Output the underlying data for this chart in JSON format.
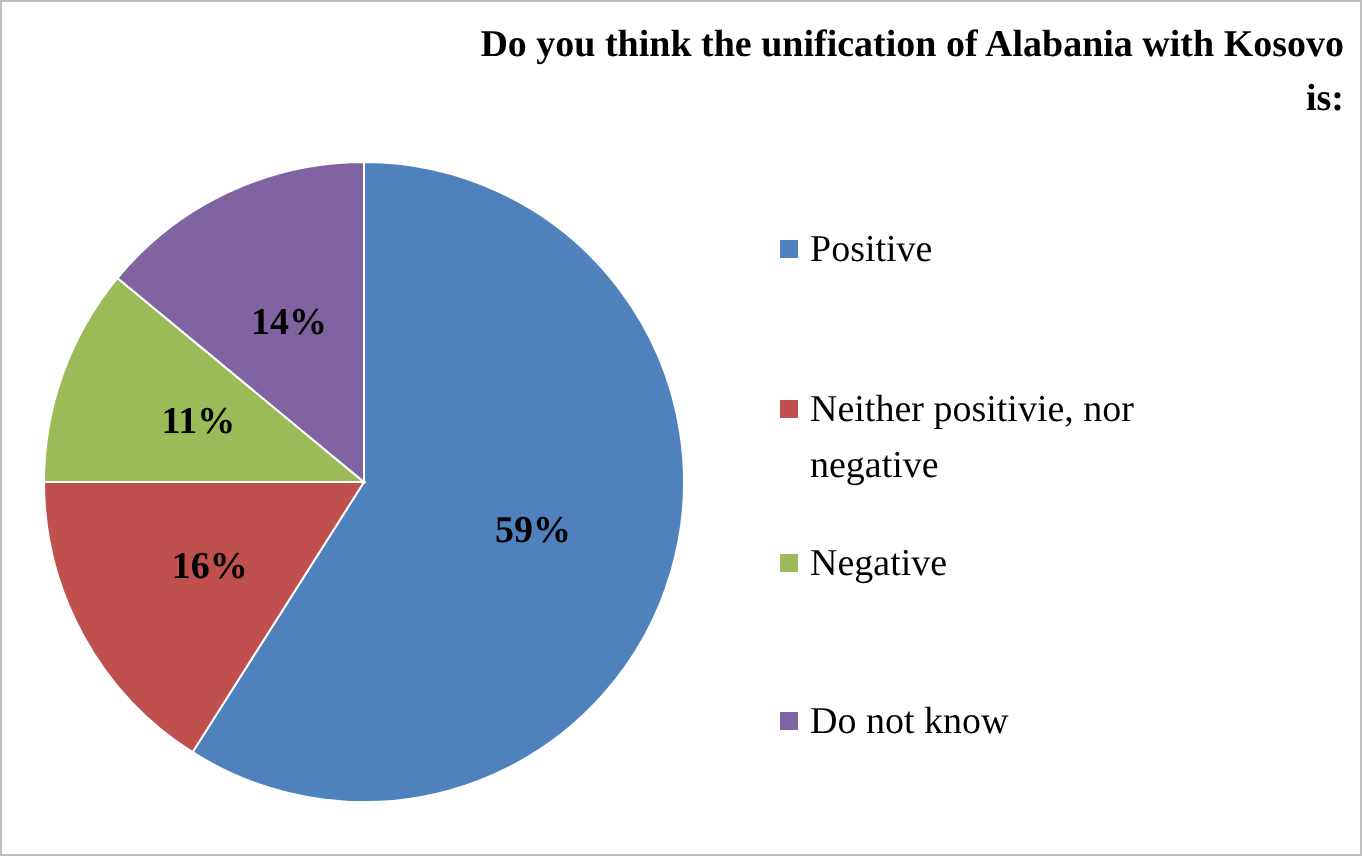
{
  "chart_data": {
    "type": "pie",
    "title": "Do you think the unification of Alabania with Kosovo is:",
    "categories": [
      "Positive",
      "Neither positivie, nor negative",
      "Negative",
      "Do not know"
    ],
    "values": [
      59,
      16,
      11,
      14
    ],
    "colors": [
      "#4f81bd",
      "#c0504d",
      "#9bbb59",
      "#8064a2"
    ],
    "value_labels": [
      "59%",
      "16%",
      "11%",
      "14%"
    ],
    "legend": "right"
  }
}
